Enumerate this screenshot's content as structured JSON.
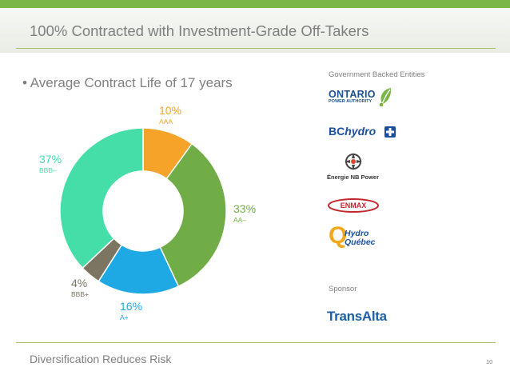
{
  "slide": {
    "title": "100% Contracted with Investment-Grade Off-Takers",
    "bullet": "• Average Contract Life of 17 years",
    "footer": "Diversification Reduces Risk",
    "page_number": "10",
    "accent_color": "#7ab648"
  },
  "chart_data": {
    "type": "pie",
    "donut": true,
    "unit": "%",
    "slices": [
      {
        "rating": "AAA",
        "value": 10,
        "label": "10%",
        "color": "#f6a32a"
      },
      {
        "rating": "AA–",
        "value": 33,
        "label": "33%",
        "color": "#70ad47"
      },
      {
        "rating": "A+",
        "value": 16,
        "label": "16%",
        "color": "#1ea9e5"
      },
      {
        "rating": "BBB+",
        "value": 4,
        "label": "4%",
        "color": "#7b7561"
      },
      {
        "rating": "BBB–",
        "value": 37,
        "label": "37%",
        "color": "#46dea8"
      }
    ]
  },
  "offtakers": {
    "government_heading": "Government Backed Entities",
    "government_logos": [
      {
        "name": "ontario-power-authority",
        "line1": "ONTARIO",
        "line2": "POWER AUTHORITY"
      },
      {
        "name": "bc-hydro",
        "bc": "BC",
        "hydro": "hydro"
      },
      {
        "name": "energie-nb-power",
        "text": "Énergie NB Power"
      },
      {
        "name": "enmax",
        "text": "ENMAX"
      },
      {
        "name": "hydro-quebec",
        "q": "Q",
        "line1": "Hydro",
        "line2": "Québec"
      }
    ],
    "sponsor_heading": "Sponsor",
    "sponsor_logo": {
      "name": "transalta",
      "text": "TransAlta"
    }
  }
}
